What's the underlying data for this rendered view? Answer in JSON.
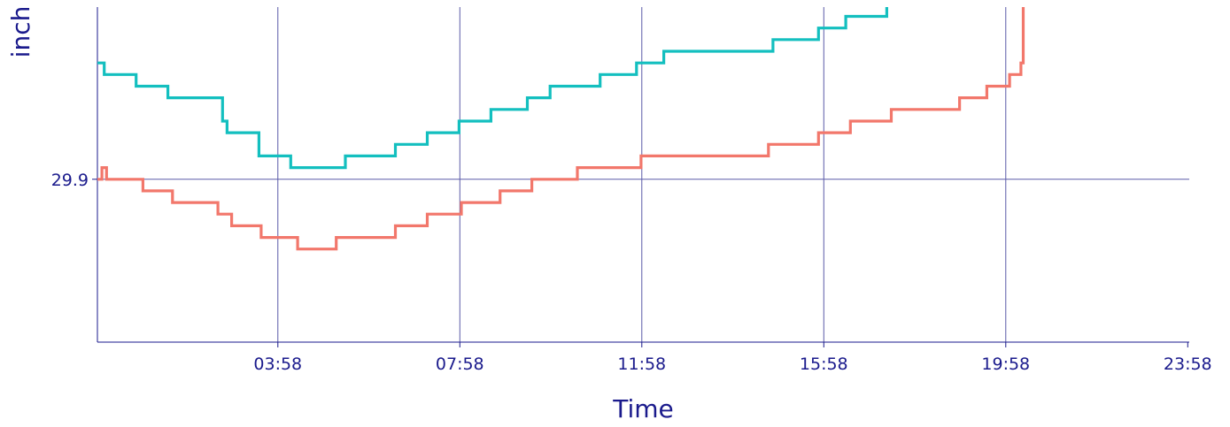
{
  "chart_data": {
    "type": "line",
    "title": "",
    "xlabel": "Time",
    "ylabel": "inch",
    "x_tick_labels": [
      "03:58",
      "07:58",
      "11:58",
      "15:58",
      "19:58",
      "23:58"
    ],
    "y_tick_labels": [
      "29.9"
    ],
    "xlim_hours": [
      0,
      24
    ],
    "ylim": [
      29.83,
      29.974
    ],
    "grid": true,
    "colors": {
      "axis": "#1a1a8c",
      "grid": "#5a5aa8",
      "series": [
        "#13bfbf",
        "#f2776b"
      ]
    },
    "series": [
      {
        "values": [
          [
            0.0,
            29.95
          ],
          [
            0.1,
            29.95
          ],
          [
            0.15,
            29.945
          ],
          [
            0.8,
            29.945
          ],
          [
            0.85,
            29.94
          ],
          [
            1.5,
            29.94
          ],
          [
            1.55,
            29.935
          ],
          [
            2.7,
            29.935
          ],
          [
            2.75,
            29.925
          ],
          [
            2.85,
            29.92
          ],
          [
            3.5,
            29.92
          ],
          [
            3.55,
            29.91
          ],
          [
            4.2,
            29.91
          ],
          [
            4.25,
            29.905
          ],
          [
            5.4,
            29.905
          ],
          [
            5.45,
            29.91
          ],
          [
            6.5,
            29.91
          ],
          [
            6.55,
            29.915
          ],
          [
            7.2,
            29.915
          ],
          [
            7.25,
            29.92
          ],
          [
            7.9,
            29.92
          ],
          [
            7.95,
            29.925
          ],
          [
            8.6,
            29.925
          ],
          [
            8.65,
            29.93
          ],
          [
            9.4,
            29.93
          ],
          [
            9.45,
            29.935
          ],
          [
            9.9,
            29.935
          ],
          [
            9.95,
            29.94
          ],
          [
            11.0,
            29.94
          ],
          [
            11.05,
            29.945
          ],
          [
            11.8,
            29.945
          ],
          [
            11.85,
            29.95
          ],
          [
            12.4,
            29.95
          ],
          [
            12.45,
            29.955
          ],
          [
            14.8,
            29.955
          ],
          [
            14.85,
            29.96
          ],
          [
            15.8,
            29.96
          ],
          [
            15.85,
            29.965
          ],
          [
            16.4,
            29.965
          ],
          [
            16.45,
            29.97
          ],
          [
            17.3,
            29.97
          ],
          [
            17.35,
            29.974
          ]
        ]
      },
      {
        "values": [
          [
            0.0,
            29.9
          ],
          [
            0.1,
            29.905
          ],
          [
            0.2,
            29.9
          ],
          [
            0.95,
            29.9
          ],
          [
            1.0,
            29.895
          ],
          [
            1.6,
            29.895
          ],
          [
            1.65,
            29.89
          ],
          [
            2.6,
            29.89
          ],
          [
            2.65,
            29.885
          ],
          [
            2.9,
            29.885
          ],
          [
            2.95,
            29.88
          ],
          [
            3.55,
            29.88
          ],
          [
            3.6,
            29.875
          ],
          [
            4.35,
            29.875
          ],
          [
            4.4,
            29.87
          ],
          [
            5.2,
            29.87
          ],
          [
            5.25,
            29.875
          ],
          [
            6.5,
            29.875
          ],
          [
            6.55,
            29.88
          ],
          [
            7.2,
            29.88
          ],
          [
            7.25,
            29.885
          ],
          [
            7.95,
            29.885
          ],
          [
            8.0,
            29.89
          ],
          [
            8.8,
            29.89
          ],
          [
            8.85,
            29.895
          ],
          [
            9.5,
            29.895
          ],
          [
            9.55,
            29.9
          ],
          [
            10.5,
            29.9
          ],
          [
            10.55,
            29.905
          ],
          [
            11.9,
            29.905
          ],
          [
            11.95,
            29.91
          ],
          [
            13.0,
            29.91
          ],
          [
            13.05,
            29.91
          ],
          [
            14.7,
            29.91
          ],
          [
            14.75,
            29.915
          ],
          [
            15.8,
            29.915
          ],
          [
            15.85,
            29.92
          ],
          [
            16.5,
            29.92
          ],
          [
            16.55,
            29.925
          ],
          [
            17.4,
            29.925
          ],
          [
            17.45,
            29.93
          ],
          [
            18.9,
            29.93
          ],
          [
            18.95,
            29.935
          ],
          [
            19.5,
            29.935
          ],
          [
            19.55,
            29.94
          ],
          [
            20.0,
            29.94
          ],
          [
            20.05,
            29.945
          ],
          [
            20.3,
            29.95
          ],
          [
            20.35,
            29.974
          ]
        ]
      }
    ]
  }
}
